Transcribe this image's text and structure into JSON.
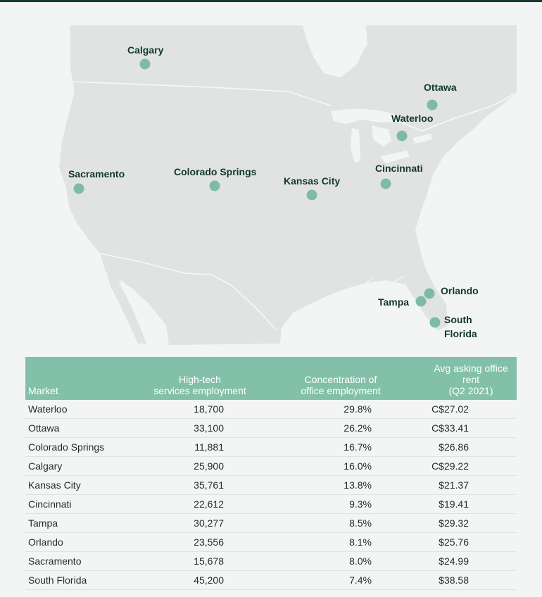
{
  "colors": {
    "accent": "#83c0a9",
    "marker": "#7fbba4",
    "land": "#e0e3e2",
    "border_line": "#f7f8f8",
    "label": "#12372f",
    "topbar": "#143a33"
  },
  "map": {
    "cities": [
      {
        "id": "calgary",
        "name": "Calgary"
      },
      {
        "id": "ottawa",
        "name": "Ottawa"
      },
      {
        "id": "waterloo",
        "name": "Waterloo"
      },
      {
        "id": "sacramento",
        "name": "Sacramento"
      },
      {
        "id": "colorado-springs",
        "name": "Colorado Springs"
      },
      {
        "id": "kansas-city",
        "name": "Kansas City"
      },
      {
        "id": "cincinnati",
        "name": "Cincinnati"
      },
      {
        "id": "orlando",
        "name": "Orlando"
      },
      {
        "id": "tampa",
        "name": "Tampa"
      },
      {
        "id": "south-florida",
        "name_line1": "South",
        "name_line2": "Florida"
      }
    ]
  },
  "table": {
    "headers": {
      "market": "Market",
      "employment_line1": "High-tech",
      "employment_line2": "services employment",
      "concentration_line1": "Concentration of",
      "concentration_line2": "office employment",
      "rent_line1": "Avg asking office rent",
      "rent_line2": "(Q2 2021)"
    },
    "rows": [
      {
        "market": "Waterloo",
        "employment": "18,700",
        "concentration": "29.8%",
        "rent": "C$27.02"
      },
      {
        "market": "Ottawa",
        "employment": "33,100",
        "concentration": "26.2%",
        "rent": "C$33.41"
      },
      {
        "market": "Colorado Springs",
        "employment": "11,881",
        "concentration": "16.7%",
        "rent": "$26.86"
      },
      {
        "market": "Calgary",
        "employment": "25,900",
        "concentration": "16.0%",
        "rent": "C$29.22"
      },
      {
        "market": "Kansas City",
        "employment": "35,761",
        "concentration": "13.8%",
        "rent": "$21.37"
      },
      {
        "market": "Cincinnati",
        "employment": "22,612",
        "concentration": "9.3%",
        "rent": "$19.41"
      },
      {
        "market": "Tampa",
        "employment": "30,277",
        "concentration": "8.5%",
        "rent": "$29.32"
      },
      {
        "market": "Orlando",
        "employment": "23,556",
        "concentration": "8.1%",
        "rent": "$25.76"
      },
      {
        "market": "Sacramento",
        "employment": "15,678",
        "concentration": "8.0%",
        "rent": "$24.99"
      },
      {
        "market": "South Florida",
        "employment": "45,200",
        "concentration": "7.4%",
        "rent": "$38.58"
      }
    ]
  }
}
